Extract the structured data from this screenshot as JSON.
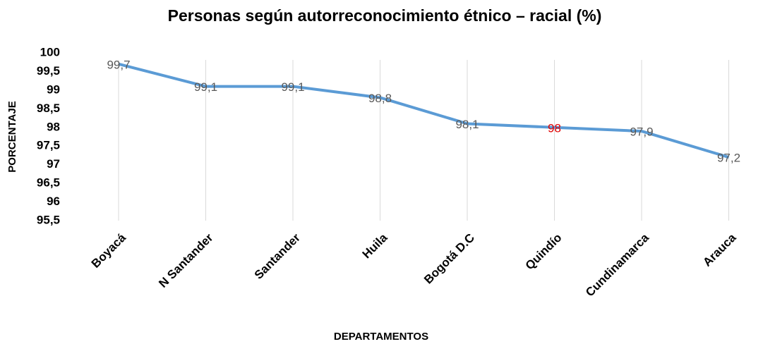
{
  "chart_data": {
    "type": "line",
    "title": "Personas según autorreconocimiento étnico – racial (%)",
    "x_label": "DEPARTAMENTOS",
    "y_label": "PORCENTAJE",
    "categories": [
      "Boyacá",
      "N Santander",
      "Santander",
      "Huila",
      "Bogotá D.C",
      "Quindío",
      "Cundinamarca",
      "Arauca"
    ],
    "series": [
      {
        "name": "Porcentaje",
        "color": "#5b9bd5",
        "values": [
          99.7,
          99.1,
          99.1,
          98.8,
          98.1,
          98,
          97.9,
          97.2
        ],
        "value_labels": [
          "99,7",
          "99,1",
          "99,1",
          "98,8",
          "98,1",
          "98",
          "97,9",
          "97,2"
        ],
        "value_label_colors": [
          "#595959",
          "#595959",
          "#595959",
          "#595959",
          "#595959",
          "#e00000",
          "#595959",
          "#595959"
        ]
      }
    ],
    "ylim": [
      95.5,
      100
    ],
    "yticks": [
      {
        "value": 95.5,
        "label": "95,5"
      },
      96,
      {
        "value": 96.5,
        "label": "96,5"
      },
      97,
      {
        "value": 97.5,
        "label": "97,5"
      },
      98,
      {
        "value": 98.5,
        "label": "98,5"
      },
      99,
      {
        "value": 99.5,
        "label": "99,5"
      },
      100
    ],
    "grid": true
  }
}
